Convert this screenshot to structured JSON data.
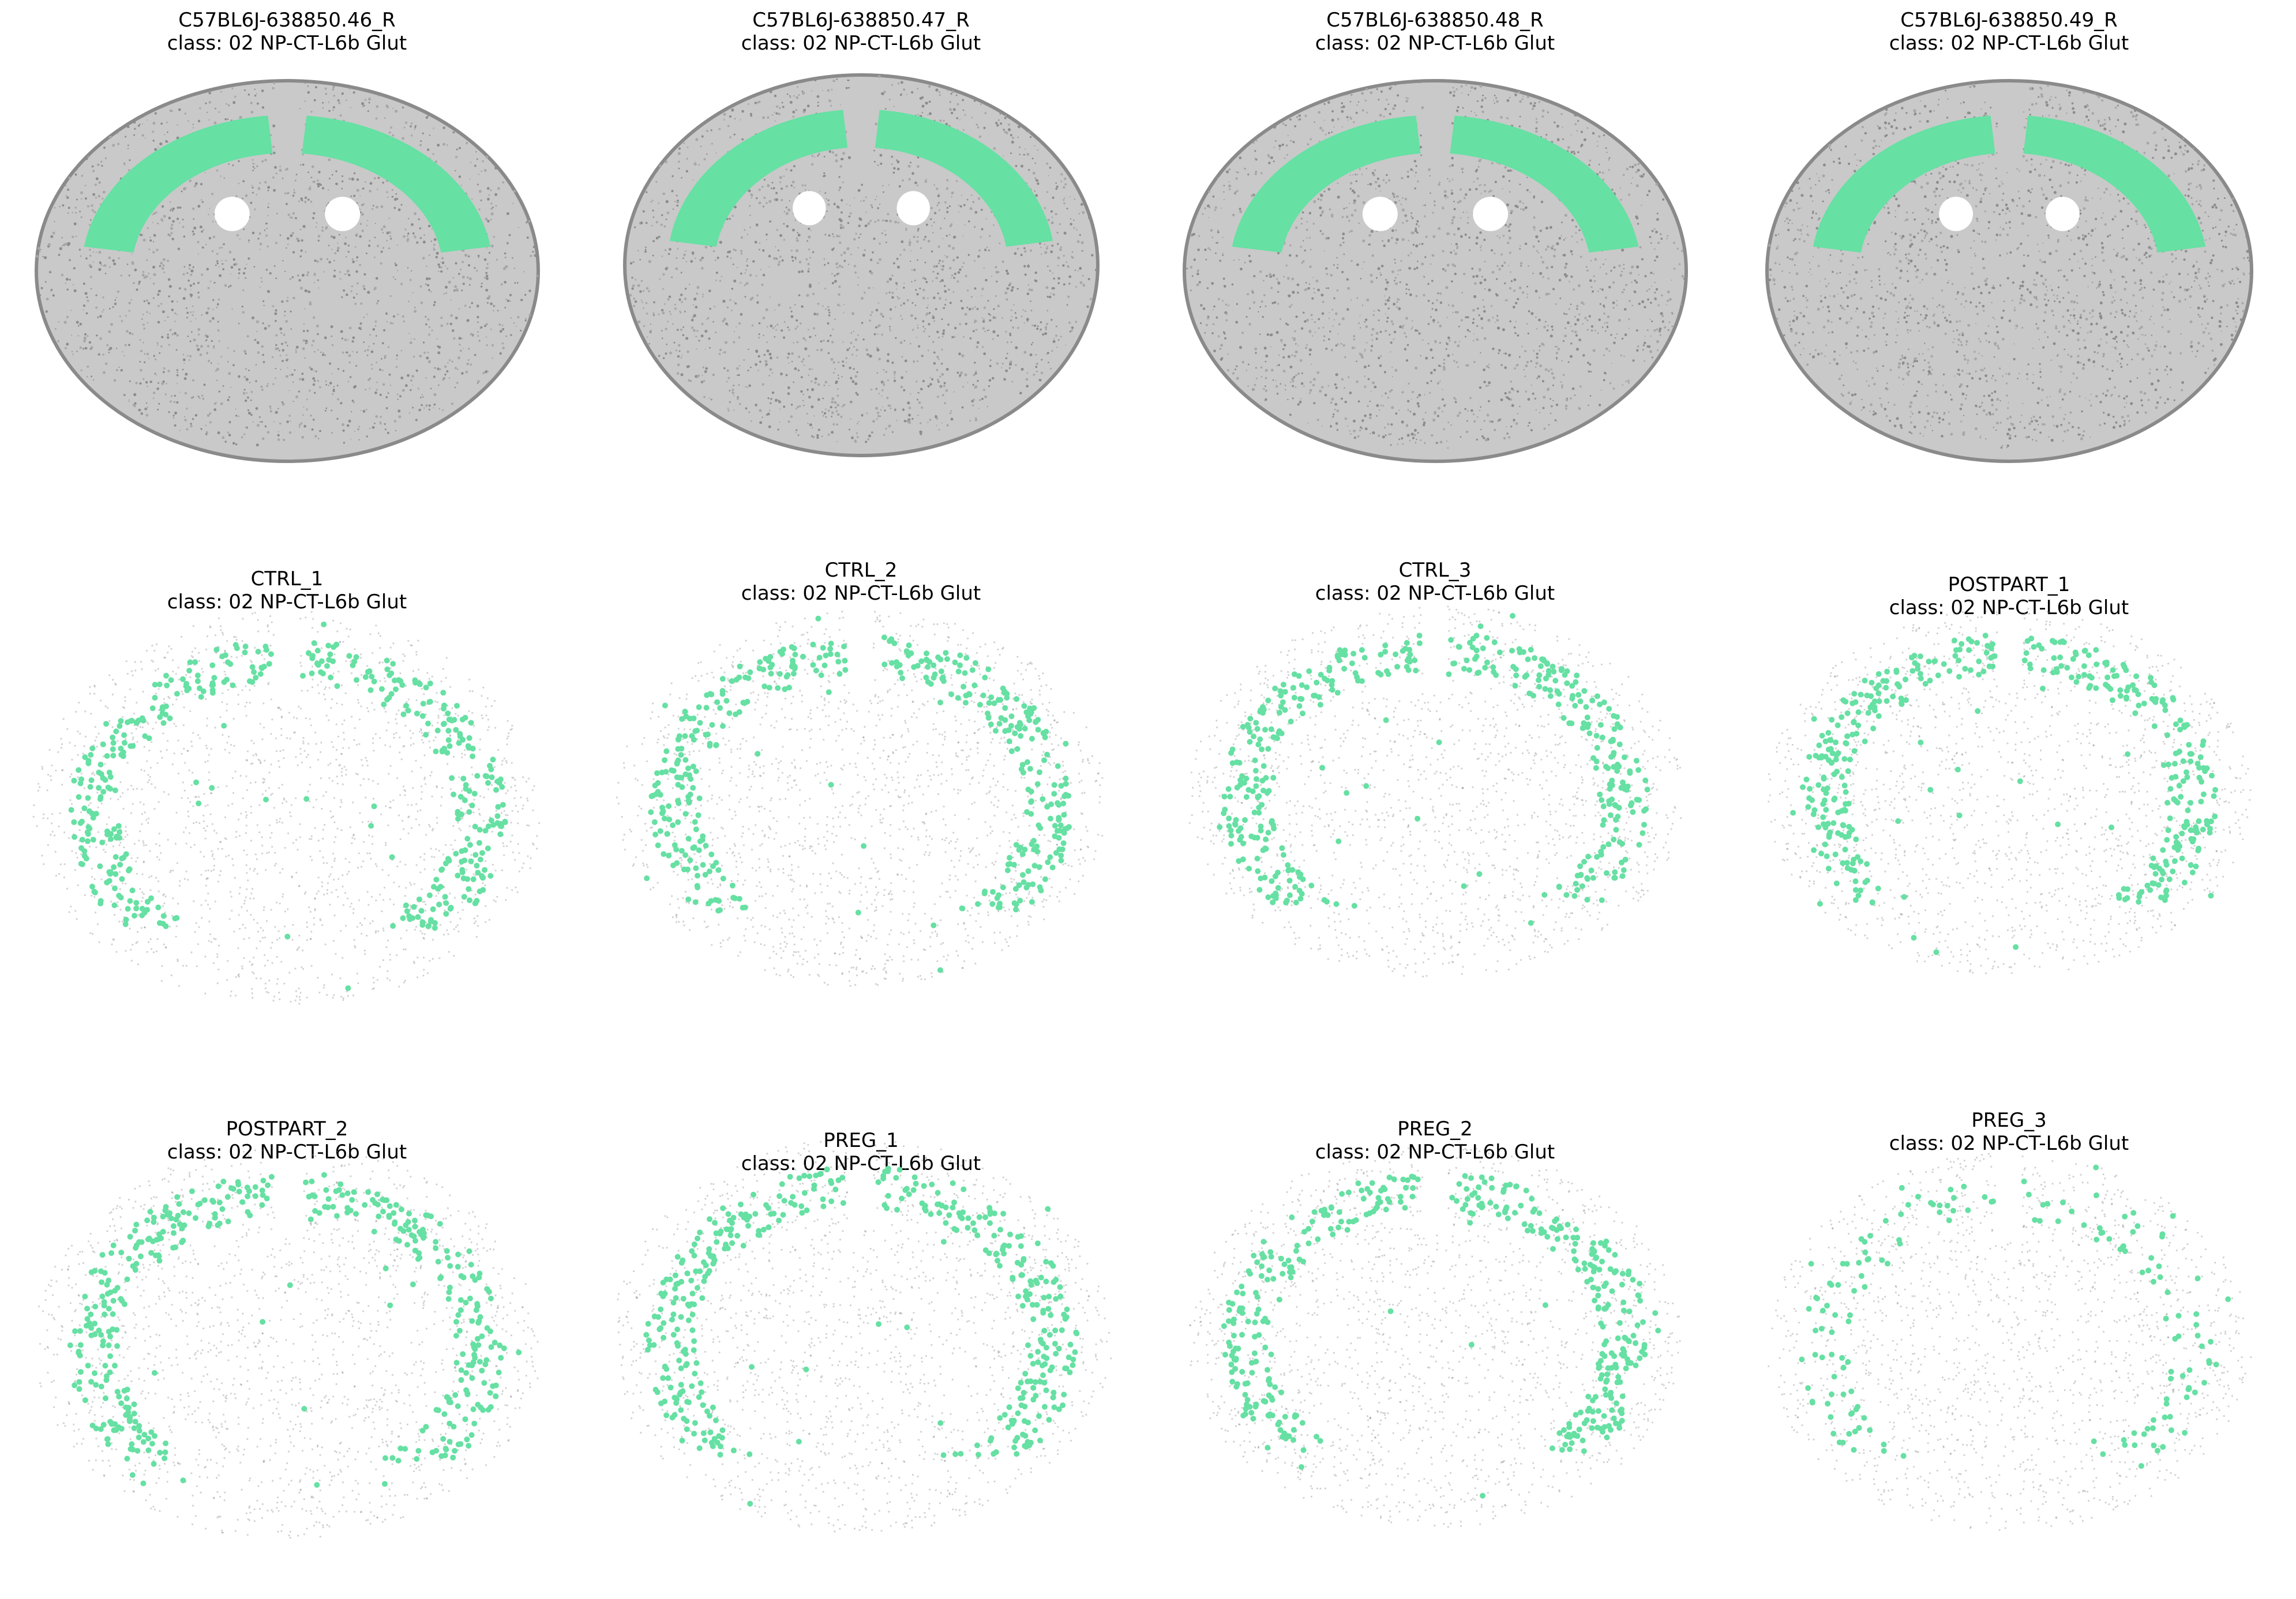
{
  "figure": {
    "type": "spatial cell-type scatter (mouse coronal brain sections)",
    "highlight_color": "#66E0A3",
    "background_cell_color": "#7f7f7f"
  },
  "panels": [
    {
      "sample": "C57BL6J-638850.46_R",
      "class_label": "class: 02 NP-CT-L6b Glut",
      "style": "reference"
    },
    {
      "sample": "C57BL6J-638850.47_R",
      "class_label": "class: 02 NP-CT-L6b Glut",
      "style": "reference"
    },
    {
      "sample": "C57BL6J-638850.48_R",
      "class_label": "class: 02 NP-CT-L6b Glut",
      "style": "reference"
    },
    {
      "sample": "C57BL6J-638850.49_R",
      "class_label": "class: 02 NP-CT-L6b Glut",
      "style": "reference"
    },
    {
      "sample": "CTRL_1",
      "class_label": "class: 02 NP-CT-L6b Glut",
      "style": "sparse"
    },
    {
      "sample": "CTRL_2",
      "class_label": "class: 02 NP-CT-L6b Glut",
      "style": "sparse"
    },
    {
      "sample": "CTRL_3",
      "class_label": "class: 02 NP-CT-L6b Glut",
      "style": "sparse"
    },
    {
      "sample": "POSTPART_1",
      "class_label": "class: 02 NP-CT-L6b Glut",
      "style": "sparse"
    },
    {
      "sample": "POSTPART_2",
      "class_label": "class: 02 NP-CT-L6b Glut",
      "style": "sparse"
    },
    {
      "sample": "PREG_1",
      "class_label": "class: 02 NP-CT-L6b Glut",
      "style": "sparse"
    },
    {
      "sample": "PREG_2",
      "class_label": "class: 02 NP-CT-L6b Glut",
      "style": "sparse"
    },
    {
      "sample": "PREG_3",
      "class_label": "class: 02 NP-CT-L6b Glut",
      "style": "sparse"
    }
  ]
}
